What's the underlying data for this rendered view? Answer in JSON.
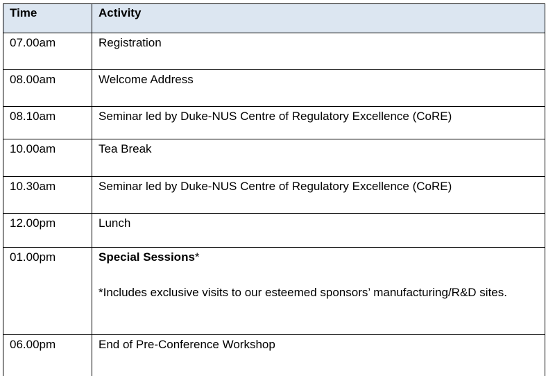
{
  "table": {
    "headers": {
      "time": "Time",
      "activity": "Activity"
    },
    "rows": [
      {
        "time": "07.00am",
        "activity": "Registration",
        "bold": false
      },
      {
        "time": "08.00am",
        "activity": "Welcome Address",
        "bold": false
      },
      {
        "time": "08.10am",
        "activity": "Seminar led by Duke-NUS Centre of Regulatory Excellence (CoRE)",
        "bold": false
      },
      {
        "time": "10.00am",
        "activity": "Tea Break",
        "bold": true
      },
      {
        "time": "10.30am",
        "activity": "Seminar led by Duke-NUS Centre of Regulatory Excellence (CoRE)",
        "bold": false
      },
      {
        "time": "12.00pm",
        "activity": "Lunch",
        "bold": true
      },
      {
        "time": "01.00pm",
        "activity": "Special Sessions",
        "activity_suffix": "*",
        "note": "*Includes exclusive visits to our esteemed sponsors’ manufacturing/R&D sites.",
        "bold": true
      },
      {
        "time": "06.00pm",
        "activity": "End of Pre-Conference Workshop",
        "bold": false
      }
    ]
  }
}
